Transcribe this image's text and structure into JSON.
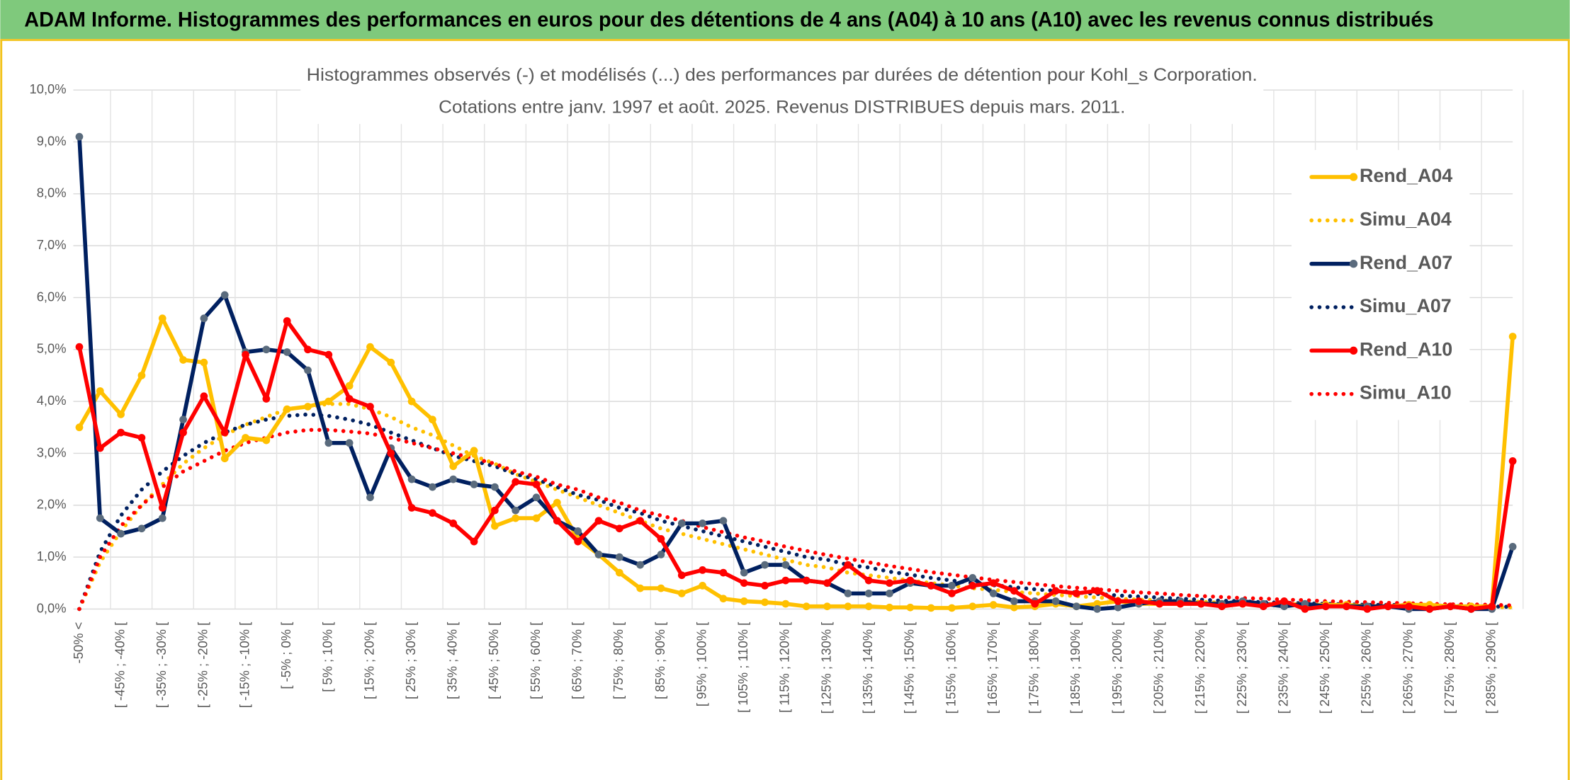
{
  "header": {
    "title": "ADAM Informe. Histogrammes des performances en euros pour des détentions de 4 ans (A04) à 10 ans (A10) avec les revenus connus distribués"
  },
  "chart_data": {
    "type": "line",
    "title": "Histogrammes observés (-) et modélisés (...) des performances par durées de détention pour Kohl_s Corporation.",
    "subtitle": "Cotations entre janv. 1997 et août. 2025. Revenus DISTRIBUES depuis mars. 2011.",
    "categories": [
      "-50% <",
      null,
      "[ -45% ; -40% [",
      null,
      "[ -35% ; -30% [",
      null,
      "[ -25% ; -20% [",
      null,
      "[ -15% ; -10% [",
      null,
      "[ -5% ; 0% [",
      null,
      "[ 5% ; 10% [",
      null,
      "[ 15% ; 20% [",
      null,
      "[ 25% ; 30% [",
      null,
      "[ 35% ; 40% [",
      null,
      "[ 45% ; 50% [",
      null,
      "[ 55% ; 60% [",
      null,
      "[ 65% ; 70% [",
      null,
      "[ 75% ; 80% [",
      null,
      "[ 85% ; 90% [",
      null,
      "[ 95% ; 100% [",
      null,
      "[ 105% ; 110% [",
      null,
      "[ 115% ; 120% [",
      null,
      "[ 125% ; 130% [",
      null,
      "[ 135% ; 140% [",
      null,
      "[ 145% ; 150% [",
      null,
      "[ 155% ; 160% [",
      null,
      "[ 165% ; 170% [",
      null,
      "[ 175% ; 180% [",
      null,
      "[ 185% ; 190% [",
      null,
      "[ 195% ; 200% [",
      null,
      "[ 205% ; 210% [",
      null,
      "[ 215% ; 220% [",
      null,
      "[ 225% ; 230% [",
      null,
      "[ 235% ; 240% [",
      null,
      "[ 245% ; 250% [",
      null,
      "[ 255% ; 260% [",
      null,
      "[ 265% ; 270% [",
      null,
      "[ 275% ; 280% [",
      null,
      "[ 285% ; 290% [",
      null
    ],
    "ylim": [
      0,
      10
    ],
    "yticks": [
      {
        "value": 0,
        "label": "0,0%"
      },
      {
        "value": 1,
        "label": "1,0%"
      },
      {
        "value": 2,
        "label": "2,0%"
      },
      {
        "value": 3,
        "label": "3,0%"
      },
      {
        "value": 4,
        "label": "4,0%"
      },
      {
        "value": 5,
        "label": "5,0%"
      },
      {
        "value": 6,
        "label": "6,0%"
      },
      {
        "value": 7,
        "label": "7,0%"
      },
      {
        "value": 8,
        "label": "8,0%"
      },
      {
        "value": 9,
        "label": "9,0%"
      },
      {
        "value": 10,
        "label": "10,0%"
      }
    ],
    "grid": true,
    "legend": "right",
    "series": [
      {
        "name": "Rend_A04",
        "color": "#ffc000",
        "line_style": "solid",
        "markers": true,
        "values": [
          3.5,
          4.2,
          3.75,
          4.5,
          5.6,
          4.8,
          4.75,
          2.9,
          3.3,
          3.25,
          3.85,
          3.9,
          4.0,
          4.3,
          5.05,
          4.75,
          4.0,
          3.65,
          2.75,
          3.05,
          1.6,
          1.75,
          1.75,
          2.05,
          1.35,
          1.05,
          0.7,
          0.4,
          0.4,
          0.3,
          0.45,
          0.2,
          0.15,
          0.13,
          0.1,
          0.05,
          0.05,
          0.05,
          0.05,
          0.03,
          0.03,
          0.02,
          0.02,
          0.05,
          0.08,
          0.03,
          0.05,
          0.1,
          0.05,
          0.1,
          0.15,
          0.1,
          0.1,
          0.1,
          0.1,
          0.1,
          0.1,
          0.08,
          0.1,
          0.08,
          0.08,
          0.08,
          0.05,
          0.05,
          0.08,
          0.08,
          0.05,
          0.05,
          0.05,
          5.25
        ]
      },
      {
        "name": "Simu_A04",
        "color": "#ffc000",
        "line_style": "dotted",
        "markers": false,
        "values": [
          0,
          0.9,
          1.5,
          2.0,
          2.4,
          2.8,
          3.1,
          3.35,
          3.55,
          3.7,
          3.85,
          3.9,
          3.95,
          3.95,
          3.85,
          3.7,
          3.5,
          3.35,
          3.15,
          2.95,
          2.8,
          2.6,
          2.45,
          2.3,
          2.15,
          2.0,
          1.85,
          1.7,
          1.55,
          1.45,
          1.35,
          1.25,
          1.15,
          1.05,
          0.95,
          0.85,
          0.8,
          0.7,
          0.65,
          0.6,
          0.55,
          0.5,
          0.45,
          0.4,
          0.37,
          0.33,
          0.3,
          0.27,
          0.25,
          0.22,
          0.2,
          0.18,
          0.17,
          0.15,
          0.14,
          0.12,
          0.11,
          0.1,
          0.09,
          0.08,
          0.08,
          0.07,
          0.06,
          0.06,
          0.05,
          0.05,
          0.04,
          0.04,
          0.04,
          0.03
        ]
      },
      {
        "name": "Rend_A07",
        "color": "#002060",
        "line_style": "solid",
        "markers": true,
        "marker_color": "#5a6b7d",
        "values": [
          9.1,
          1.75,
          1.45,
          1.55,
          1.75,
          3.65,
          5.6,
          6.05,
          4.95,
          5.0,
          4.95,
          4.6,
          3.2,
          3.2,
          2.15,
          3.1,
          2.5,
          2.35,
          2.5,
          2.4,
          2.35,
          1.9,
          2.15,
          1.7,
          1.5,
          1.05,
          1.0,
          0.85,
          1.05,
          1.65,
          1.65,
          1.7,
          0.7,
          0.85,
          0.85,
          0.55,
          0.5,
          0.3,
          0.3,
          0.3,
          0.5,
          0.45,
          0.45,
          0.6,
          0.3,
          0.15,
          0.15,
          0.15,
          0.05,
          0.0,
          0.03,
          0.1,
          0.15,
          0.15,
          0.1,
          0.1,
          0.15,
          0.1,
          0.05,
          0.1,
          0.05,
          0.05,
          0.05,
          0.05,
          0.0,
          0.0,
          0.05,
          0.0,
          0.0,
          1.2
        ]
      },
      {
        "name": "Simu_A07",
        "color": "#002060",
        "line_style": "dotted",
        "markers": false,
        "values": [
          0,
          1.1,
          1.8,
          2.3,
          2.65,
          2.95,
          3.2,
          3.4,
          3.55,
          3.65,
          3.72,
          3.75,
          3.72,
          3.65,
          3.55,
          3.4,
          3.25,
          3.1,
          2.95,
          2.85,
          2.75,
          2.6,
          2.5,
          2.35,
          2.2,
          2.1,
          1.95,
          1.85,
          1.7,
          1.6,
          1.5,
          1.4,
          1.3,
          1.2,
          1.1,
          1.0,
          0.95,
          0.85,
          0.8,
          0.72,
          0.66,
          0.6,
          0.55,
          0.5,
          0.46,
          0.42,
          0.38,
          0.35,
          0.32,
          0.29,
          0.26,
          0.24,
          0.22,
          0.2,
          0.18,
          0.16,
          0.15,
          0.13,
          0.12,
          0.11,
          0.1,
          0.09,
          0.08,
          0.08,
          0.07,
          0.06,
          0.06,
          0.05,
          0.05,
          0.04
        ]
      },
      {
        "name": "Rend_A10",
        "color": "#ff0000",
        "line_style": "solid",
        "markers": true,
        "values": [
          5.05,
          3.1,
          3.4,
          3.3,
          1.95,
          3.4,
          4.1,
          3.4,
          4.9,
          4.05,
          5.55,
          5.0,
          4.9,
          4.05,
          3.9,
          3.0,
          1.95,
          1.85,
          1.65,
          1.3,
          1.9,
          2.45,
          2.4,
          1.7,
          1.3,
          1.7,
          1.55,
          1.7,
          1.35,
          0.65,
          0.75,
          0.7,
          0.5,
          0.45,
          0.55,
          0.55,
          0.5,
          0.85,
          0.55,
          0.5,
          0.55,
          0.45,
          0.3,
          0.45,
          0.5,
          0.35,
          0.1,
          0.35,
          0.3,
          0.35,
          0.15,
          0.15,
          0.1,
          0.1,
          0.1,
          0.05,
          0.1,
          0.05,
          0.15,
          0.0,
          0.05,
          0.05,
          0.0,
          0.05,
          0.05,
          0.0,
          0.05,
          0.0,
          0.05,
          2.85
        ]
      },
      {
        "name": "Simu_A10",
        "color": "#ff0000",
        "line_style": "dotted",
        "markers": false,
        "values": [
          0,
          1.0,
          1.6,
          2.0,
          2.35,
          2.65,
          2.85,
          3.05,
          3.2,
          3.3,
          3.4,
          3.45,
          3.45,
          3.42,
          3.38,
          3.3,
          3.2,
          3.1,
          3.0,
          2.9,
          2.8,
          2.65,
          2.55,
          2.4,
          2.3,
          2.15,
          2.05,
          1.9,
          1.8,
          1.7,
          1.58,
          1.48,
          1.38,
          1.3,
          1.2,
          1.12,
          1.04,
          0.97,
          0.9,
          0.83,
          0.77,
          0.71,
          0.66,
          0.61,
          0.56,
          0.52,
          0.48,
          0.44,
          0.41,
          0.38,
          0.35,
          0.32,
          0.3,
          0.27,
          0.25,
          0.23,
          0.21,
          0.2,
          0.18,
          0.17,
          0.15,
          0.14,
          0.13,
          0.12,
          0.11,
          0.1,
          0.09,
          0.09,
          0.08,
          0.07
        ]
      }
    ]
  }
}
